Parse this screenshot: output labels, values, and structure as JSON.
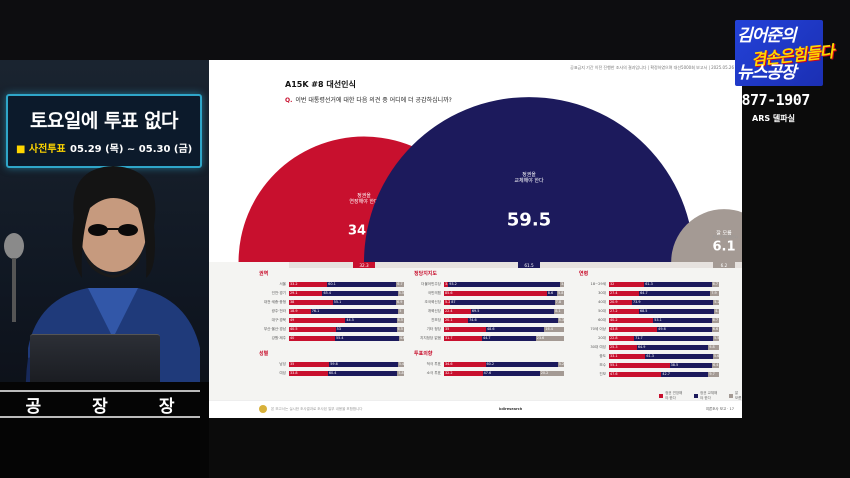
{
  "studio": {
    "sign_title": "토요일에 투표 없다",
    "sign_sub": "■ 사전투표",
    "sign_dates": "05.29 (목) ~ 05.30 (금)",
    "desk_label": [
      "공",
      "장",
      "장"
    ]
  },
  "show": {
    "logo_line1": "김어준의",
    "logo_mid": "겸손은힘들다",
    "logo_line2": "뉴스공장",
    "years": "1877-1907",
    "ars": "ARS 델파실"
  },
  "slide": {
    "meta": "공표금지 기간 이전 진행한 조사의 결과입니다   |   확정하였으며 대선5000회 보고서   |   2025.05.26",
    "title_tag": "A15K #8",
    "title": "대선인식",
    "question_mark": "Q.",
    "question": "이번 대통령선거에 대한 다음 의견 중 어디에 더 공감하십니까?",
    "footer_text": "본 보고서는 실시한 조사결과로 조사된 일부 내용을 포함합니다",
    "footer_center": "kdlresearch",
    "footer_right": "여론조사 보고 · 17"
  },
  "chart_data": {
    "type": "bar",
    "title": "",
    "categories": [
      "정권을 연장해야 한다",
      "정권을 교체해야 한다",
      "잘 모름"
    ],
    "values": [
      34.4,
      59.5,
      6.1
    ],
    "labels": [
      "정권을\n연장해야 한다",
      "정권을\n교체해야 한다",
      "잘 모름"
    ],
    "sub_values": [
      "32.3",
      "61.5",
      "6.2"
    ],
    "colors": [
      "#c8102e",
      "#1c1a5c",
      "#a49a94"
    ],
    "side_note": "지난 조사(대선1)",
    "legend": [
      "정권 연장해야 한다",
      "정권 교체해야 한다",
      "잘 모름"
    ],
    "panels": [
      {
        "title": "권역",
        "rows": [
          {
            "label": "서울",
            "v": [
              33.2,
              60.1,
              6.7
            ]
          },
          {
            "label": "인천·경기",
            "v": [
              29.1,
              65.4,
              5.5
            ]
          },
          {
            "label": "대전·세종·충청",
            "v": [
              38.0,
              55.1,
              6.9
            ]
          },
          {
            "label": "광주·전라",
            "v": [
              18.9,
              76.1,
              5.0
            ]
          },
          {
            "label": "대구·경북",
            "v": [
              49.0,
              44.5,
              6.5
            ]
          },
          {
            "label": "부산·울산·경남",
            "v": [
              40.5,
              53.0,
              6.5
            ]
          },
          {
            "label": "강원·제주",
            "v": [
              40.0,
              55.4,
              4.6
            ]
          }
        ],
        "sub_title": "성별",
        "sub_rows": [
          {
            "label": "남성",
            "v": [
              35.0,
              59.6,
              5.4
            ]
          },
          {
            "label": "여성",
            "v": [
              33.8,
              60.4,
              5.8
            ]
          }
        ]
      },
      {
        "title": "정당지지도",
        "rows": [
          {
            "label": "더불어민주당",
            "v": [
              3.5,
              93.2,
              3.3
            ]
          },
          {
            "label": "국민의힘",
            "v": [
              85.6,
              8.6,
              5.8
            ]
          },
          {
            "label": "조국혁신당",
            "v": [
              5.2,
              87.0,
              7.8
            ]
          },
          {
            "label": "개혁신당",
            "v": [
              22.4,
              69.5,
              8.1
            ]
          },
          {
            "label": "진보당",
            "v": [
              20.1,
              74.6,
              5.3
            ]
          },
          {
            "label": "기타 정당",
            "v": [
              35.0,
              48.6,
              16.4
            ]
          },
          {
            "label": "지지정당 없음",
            "v": [
              31.7,
              44.7,
              23.6
            ]
          }
        ],
        "sub_title": "투표의향",
        "sub_rows": [
          {
            "label": "적극 투표",
            "v": [
              34.6,
              60.2,
              5.2
            ]
          },
          {
            "label": "소극 투표",
            "v": [
              32.2,
              47.6,
              20.2
            ]
          }
        ]
      },
      {
        "title": "연령",
        "rows": [
          {
            "label": "18~29세",
            "v": [
              32.0,
              61.3,
              6.7
            ]
          },
          {
            "label": "30대",
            "v": [
              27.4,
              64.7,
              7.9
            ]
          },
          {
            "label": "40대",
            "v": [
              20.9,
              73.9,
              5.2
            ]
          },
          {
            "label": "50대",
            "v": [
              27.2,
              68.5,
              4.3
            ]
          },
          {
            "label": "60대",
            "v": [
              40.2,
              53.1,
              6.7
            ]
          },
          {
            "label": "70세 이상",
            "v": [
              43.8,
              49.6,
              6.6
            ]
          },
          {
            "label": "20대",
            "v": [
              22.8,
              71.7,
              5.5
            ]
          },
          {
            "label": "30대 여성",
            "v": [
              25.3,
              64.9,
              9.8
            ]
          },
          {
            "label": "중도",
            "v": [
              33.1,
              61.3,
              5.6
            ]
          },
          {
            "label": "보수",
            "v": [
              55.1,
              38.5,
              6.4
            ]
          },
          {
            "label": "진보",
            "v": [
              47.6,
              42.7,
              9.7
            ]
          }
        ]
      }
    ]
  }
}
